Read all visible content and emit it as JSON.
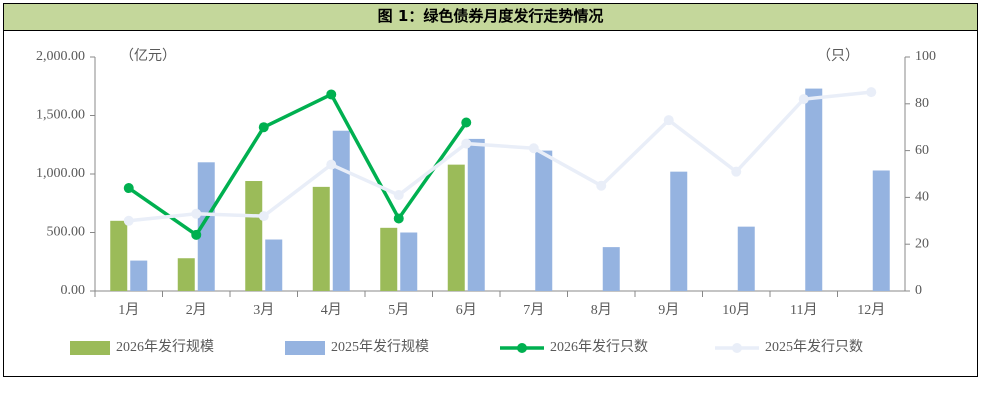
{
  "chart_data": {
    "type": "bar",
    "title": "图 1：绿色债券月度发行走势情况",
    "y_unit": "（亿元）",
    "y2_unit": "（只）",
    "categories": [
      "1月",
      "2月",
      "3月",
      "4月",
      "5月",
      "6月",
      "7月",
      "8月",
      "9月",
      "10月",
      "11月",
      "12月"
    ],
    "series": [
      {
        "name": "2026年发行规模",
        "type": "bar",
        "color": "#9bbb59",
        "values": [
          600,
          280,
          940,
          890,
          540,
          1080,
          null,
          null,
          null,
          null,
          null,
          null
        ]
      },
      {
        "name": "2025年发行规模",
        "type": "bar",
        "color": "#95b3e0",
        "values": [
          260,
          1100,
          440,
          1370,
          500,
          1300,
          1200,
          375,
          1020,
          550,
          1730,
          1030
        ]
      },
      {
        "name": "2026年发行只数",
        "type": "line",
        "axis": "y2",
        "color": "#00b050",
        "values": [
          44,
          24,
          70,
          84,
          31,
          72,
          null,
          null,
          null,
          null,
          null,
          null
        ]
      },
      {
        "name": "2025年发行只数",
        "type": "line",
        "axis": "y2",
        "color": "#e9eef8",
        "values": [
          30,
          33,
          32,
          54,
          41,
          63,
          61,
          45,
          73,
          51,
          82,
          85
        ]
      }
    ],
    "ylim": [
      0,
      2000
    ],
    "yticks": [
      {
        "value": 0,
        "label": "0.00"
      },
      {
        "value": 500,
        "label": "500.00"
      },
      {
        "value": 1000,
        "label": "1,000.00"
      },
      {
        "value": 1500,
        "label": "1,500.00"
      },
      {
        "value": 2000,
        "label": "2,000.00"
      }
    ],
    "y2lim": [
      0,
      100
    ],
    "y2ticks": [
      0,
      20,
      40,
      60,
      80,
      100
    ]
  }
}
